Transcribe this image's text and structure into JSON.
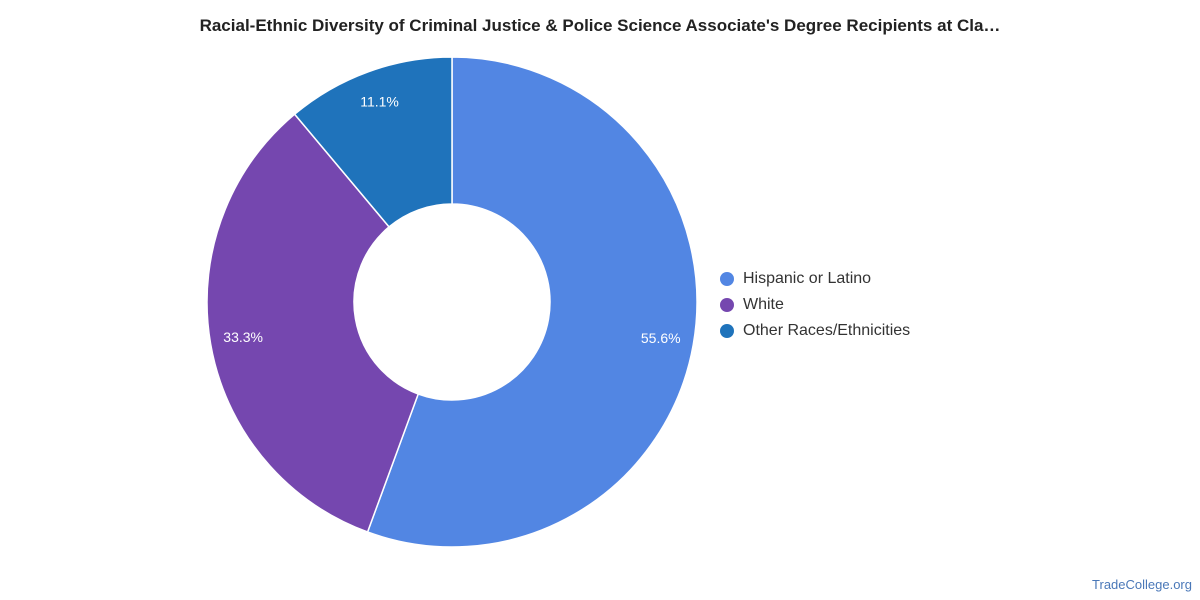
{
  "chart_data": {
    "type": "pie",
    "title": "Racial-Ethnic Diversity of Criminal Justice & Police Science Associate's Degree Recipients at Cla…",
    "donut": true,
    "legend_position": "right",
    "slices": [
      {
        "name": "Hispanic or Latino",
        "value": 55.6,
        "label": "55.6%",
        "color": "#5286e3"
      },
      {
        "name": "White",
        "value": 33.3,
        "label": "33.3%",
        "color": "#7547af"
      },
      {
        "name": "Other Races/Ethnicities",
        "value": 11.1,
        "label": "11.1%",
        "color": "#1f73bb"
      }
    ]
  },
  "footer": {
    "source": "TradeCollege.org"
  }
}
